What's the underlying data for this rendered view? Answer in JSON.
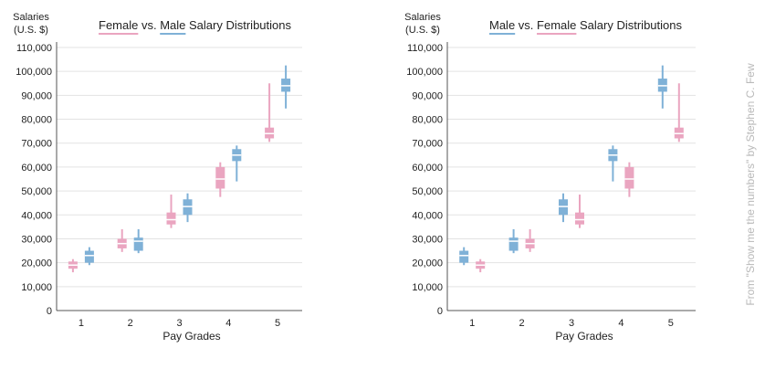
{
  "colors": {
    "female": "#eaa5c0",
    "male": "#7fb1d7",
    "axis": "#555555",
    "grid": "#e3e3e3",
    "text": "#222222",
    "credit": "#b9b9b9"
  },
  "credit": "From \"Show me the numbers\" by Stephen C. Few",
  "chart_data": [
    {
      "type": "box",
      "title_parts": [
        "Female",
        " vs. ",
        "Male",
        " Salary Distributions"
      ],
      "title_series": [
        "female",
        null,
        "male",
        null
      ],
      "ylabel": [
        "Salaries",
        "(U.S. $)"
      ],
      "xlabel": "Pay Grades",
      "ylim": [
        0,
        110000
      ],
      "yticks": [
        0,
        10000,
        20000,
        30000,
        40000,
        50000,
        60000,
        70000,
        80000,
        90000,
        100000,
        110000
      ],
      "ytick_labels": [
        "0",
        "10,000",
        "20,000",
        "30,000",
        "40,000",
        "50,000",
        "60,000",
        "70,000",
        "80,000",
        "90,000",
        "100,000",
        "110,000"
      ],
      "categories": [
        "1",
        "2",
        "3",
        "4",
        "5"
      ],
      "grid": true,
      "series_order": [
        "female",
        "male"
      ],
      "series": {
        "female": [
          {
            "min": 16000,
            "q1": 17500,
            "median": 19000,
            "q3": 20500,
            "max": 21500
          },
          {
            "min": 24500,
            "q1": 26000,
            "median": 28000,
            "q3": 30000,
            "max": 34000
          },
          {
            "min": 34500,
            "q1": 36000,
            "median": 38000,
            "q3": 41000,
            "max": 48500
          },
          {
            "min": 47500,
            "q1": 51000,
            "median": 55000,
            "q3": 60000,
            "max": 62000
          },
          {
            "min": 70500,
            "q1": 72000,
            "median": 74000,
            "q3": 76500,
            "max": 95000
          }
        ],
        "male": [
          {
            "min": 19000,
            "q1": 20000,
            "median": 23000,
            "q3": 25000,
            "max": 26500
          },
          {
            "min": 24000,
            "q1": 25000,
            "median": 29000,
            "q3": 30500,
            "max": 34000
          },
          {
            "min": 37000,
            "q1": 40000,
            "median": 43500,
            "q3": 46500,
            "max": 49000
          },
          {
            "min": 54000,
            "q1": 62500,
            "median": 65000,
            "q3": 67500,
            "max": 69000
          },
          {
            "min": 84500,
            "q1": 91500,
            "median": 94000,
            "q3": 97000,
            "max": 102500
          }
        ]
      }
    },
    {
      "type": "box",
      "title_parts": [
        "Male",
        " vs. ",
        "Female",
        " Salary Distributions"
      ],
      "title_series": [
        "male",
        null,
        "female",
        null
      ],
      "ylabel": [
        "Salaries",
        "(U.S. $)"
      ],
      "xlabel": "Pay Grades",
      "ylim": [
        0,
        110000
      ],
      "yticks": [
        0,
        10000,
        20000,
        30000,
        40000,
        50000,
        60000,
        70000,
        80000,
        90000,
        100000,
        110000
      ],
      "ytick_labels": [
        "0",
        "10,000",
        "20,000",
        "30,000",
        "40,000",
        "50,000",
        "60,000",
        "70,000",
        "80,000",
        "90,000",
        "100,000",
        "110,000"
      ],
      "categories": [
        "1",
        "2",
        "3",
        "4",
        "5"
      ],
      "grid": true,
      "series_order": [
        "male",
        "female"
      ],
      "series": {
        "female": [
          {
            "min": 16000,
            "q1": 17500,
            "median": 19000,
            "q3": 20500,
            "max": 21500
          },
          {
            "min": 24500,
            "q1": 26000,
            "median": 28000,
            "q3": 30000,
            "max": 34000
          },
          {
            "min": 34500,
            "q1": 36000,
            "median": 38000,
            "q3": 41000,
            "max": 48500
          },
          {
            "min": 47500,
            "q1": 51000,
            "median": 55000,
            "q3": 60000,
            "max": 62000
          },
          {
            "min": 70500,
            "q1": 72000,
            "median": 74000,
            "q3": 76500,
            "max": 95000
          }
        ],
        "male": [
          {
            "min": 19000,
            "q1": 20000,
            "median": 23000,
            "q3": 25000,
            "max": 26500
          },
          {
            "min": 24000,
            "q1": 25000,
            "median": 29000,
            "q3": 30500,
            "max": 34000
          },
          {
            "min": 37000,
            "q1": 40000,
            "median": 43500,
            "q3": 46500,
            "max": 49000
          },
          {
            "min": 54000,
            "q1": 62500,
            "median": 65000,
            "q3": 67500,
            "max": 69000
          },
          {
            "min": 84500,
            "q1": 91500,
            "median": 94000,
            "q3": 97000,
            "max": 102500
          }
        ]
      }
    }
  ]
}
